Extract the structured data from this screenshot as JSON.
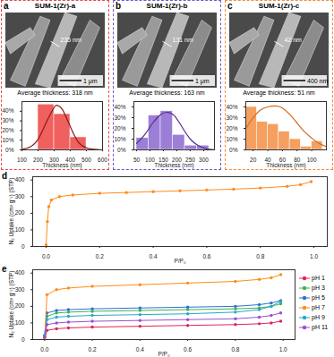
{
  "chart_data": [
    {
      "type": "histogram",
      "panel": "a",
      "header": "SUM-1(Zr)-a",
      "image": {
        "measurement": "235 nm",
        "scale_bar": "1 μm"
      },
      "title": "Average thickness: 318 nm",
      "x_label": "Thickness (nm)",
      "bins": [
        200,
        300,
        400,
        500
      ],
      "counts": [
        47,
        37,
        13
      ],
      "color": "#f0605e",
      "fit": {
        "x": [
          100,
          150,
          200,
          250,
          300,
          318,
          350,
          400,
          450,
          500,
          550,
          600
        ],
        "values": [
          0.4,
          3,
          11,
          28,
          44,
          46,
          42,
          24,
          8,
          2,
          0.5,
          0
        ],
        "color": "#8b1a1a"
      },
      "xlim": [
        100,
        600
      ],
      "xticks": [
        100,
        200,
        300,
        400,
        500,
        600
      ],
      "ylim": [
        0,
        50
      ],
      "yticks": [
        {
          "value": 0,
          "label": "0%"
        },
        {
          "value": 10,
          "label": "10%"
        },
        {
          "value": 20,
          "label": "20%"
        },
        {
          "value": 30,
          "label": "30%"
        },
        {
          "value": 40,
          "label": "40%"
        }
      ]
    },
    {
      "type": "histogram",
      "panel": "b",
      "header": "SUM-1(Zr)-b",
      "image": {
        "measurement": "131 nm",
        "scale_bar": "1 μm"
      },
      "title": "Average thickness: 163 nm",
      "x_label": "Thickness (nm)",
      "bins": [
        50,
        95,
        140,
        185,
        230,
        275,
        320
      ],
      "counts": [
        11,
        32,
        36,
        14,
        4,
        4
      ],
      "color": "#9b7fd6",
      "fit": {
        "x": [
          50,
          80,
          110,
          140,
          163,
          190,
          220,
          250,
          280,
          310,
          340
        ],
        "values": [
          6,
          14,
          25,
          33,
          35,
          32,
          21,
          10,
          4,
          1,
          0.2
        ],
        "color": "#5b2c8f"
      },
      "xlim": [
        40,
        340
      ],
      "xticks": [
        50,
        100,
        150,
        200,
        250,
        300
      ],
      "ylim": [
        0,
        45
      ],
      "yticks": [
        {
          "value": 0,
          "label": "0%"
        },
        {
          "value": 10,
          "label": "10%"
        },
        {
          "value": 20,
          "label": "20%"
        },
        {
          "value": 30,
          "label": "30%"
        },
        {
          "value": 40,
          "label": "40%"
        }
      ]
    },
    {
      "type": "histogram",
      "panel": "c",
      "header": "SUM-1(Zr)-c",
      "image": {
        "measurement": "42 nm",
        "scale_bar": "400 nm"
      },
      "title": "Average thickness: 51 nm",
      "x_label": "Thickness (nm)",
      "bins": [
        10,
        25,
        40,
        55,
        70,
        85,
        100,
        115
      ],
      "counts": [
        40,
        26,
        24,
        17,
        10,
        3,
        8
      ],
      "color": "#f5a060",
      "fit": {
        "x": [
          10,
          20,
          30,
          40,
          51,
          60,
          70,
          80,
          90,
          100,
          110,
          120
        ],
        "values": [
          20,
          30,
          37,
          40,
          41,
          39,
          33,
          25,
          17,
          11,
          6,
          3
        ],
        "color": "#d2691e"
      },
      "xlim": [
        10,
        120
      ],
      "xticks": [
        20,
        40,
        60,
        80,
        100
      ],
      "ylim": [
        0,
        45
      ],
      "yticks": [
        {
          "value": 0,
          "label": "0%"
        },
        {
          "value": 10,
          "label": "10%"
        },
        {
          "value": 20,
          "label": "20%"
        },
        {
          "value": 30,
          "label": "30%"
        },
        {
          "value": 40,
          "label": "40%"
        }
      ]
    },
    {
      "type": "line",
      "panel": "d",
      "x_label": "P/P₀",
      "y_label": "N₂ Uptake (cm³ g⁻¹) (STP)",
      "x": [
        0,
        0.005,
        0.01,
        0.02,
        0.05,
        0.1,
        0.2,
        0.3,
        0.4,
        0.5,
        0.6,
        0.7,
        0.8,
        0.9,
        0.95,
        0.99
      ],
      "series": [
        {
          "color": "#ff8c1a",
          "marker": "circle",
          "line_style": "solid",
          "values": [
            10,
            150,
            240,
            280,
            300,
            310,
            320,
            325,
            330,
            335,
            340,
            345,
            352,
            362,
            372,
            390
          ]
        }
      ],
      "xlim": [
        -0.05,
        1.05
      ],
      "xticks": [
        {
          "value": 0,
          "label": "0.0"
        },
        {
          "value": 0.2,
          "label": "0.2"
        },
        {
          "value": 0.4,
          "label": "0.4"
        },
        {
          "value": 0.6,
          "label": "0.6"
        },
        {
          "value": 0.8,
          "label": "0.8"
        },
        {
          "value": 1,
          "label": "1.0"
        }
      ],
      "ylim": [
        0,
        420
      ],
      "yticks": [
        0,
        100,
        200,
        300,
        400
      ]
    },
    {
      "type": "line",
      "panel": "e",
      "x_label": "P/P₀",
      "y_label": "N₂ Uptake (cm³ g⁻¹) (STP)",
      "legend": "right",
      "x": [
        0,
        0.01,
        0.05,
        0.1,
        0.2,
        0.4,
        0.6,
        0.8,
        0.9,
        0.95,
        0.99
      ],
      "series": [
        {
          "name": "pH 1",
          "color": "#e0245e",
          "marker": "circle",
          "line_style": "solid",
          "values": [
            10,
            55,
            65,
            70,
            75,
            80,
            85,
            90,
            95,
            100,
            110
          ]
        },
        {
          "name": "pH 3",
          "color": "#3cb44b",
          "marker": "circle",
          "line_style": "solid",
          "values": [
            20,
            140,
            160,
            165,
            170,
            175,
            180,
            185,
            190,
            200,
            215
          ]
        },
        {
          "name": "pH 5",
          "color": "#2d6fd6",
          "marker": "circle",
          "line_style": "solid",
          "values": [
            25,
            160,
            175,
            180,
            185,
            190,
            195,
            200,
            210,
            220,
            235
          ]
        },
        {
          "name": "pH 7",
          "color": "#ff8c1a",
          "marker": "circle",
          "line_style": "solid",
          "values": [
            10,
            270,
            300,
            310,
            320,
            330,
            340,
            350,
            362,
            372,
            390
          ]
        },
        {
          "name": "pH 9",
          "color": "#2aa7c9",
          "marker": "circle",
          "line_style": "solid",
          "values": [
            20,
            120,
            135,
            140,
            145,
            150,
            155,
            165,
            180,
            200,
            230
          ]
        },
        {
          "name": "pH 11",
          "color": "#9b4fd0",
          "marker": "circle",
          "line_style": "solid",
          "values": [
            15,
            90,
            100,
            105,
            110,
            115,
            120,
            125,
            135,
            145,
            160
          ]
        }
      ],
      "xlim": [
        -0.05,
        1.05
      ],
      "xticks": [
        {
          "value": 0,
          "label": "0.0"
        },
        {
          "value": 0.2,
          "label": "0.2"
        },
        {
          "value": 0.4,
          "label": "0.4"
        },
        {
          "value": 0.6,
          "label": "0.6"
        },
        {
          "value": 0.8,
          "label": "0.8"
        },
        {
          "value": 1,
          "label": "1.0"
        }
      ],
      "ylim": [
        0,
        420
      ],
      "yticks": [
        0,
        100,
        200,
        300,
        400
      ]
    }
  ]
}
